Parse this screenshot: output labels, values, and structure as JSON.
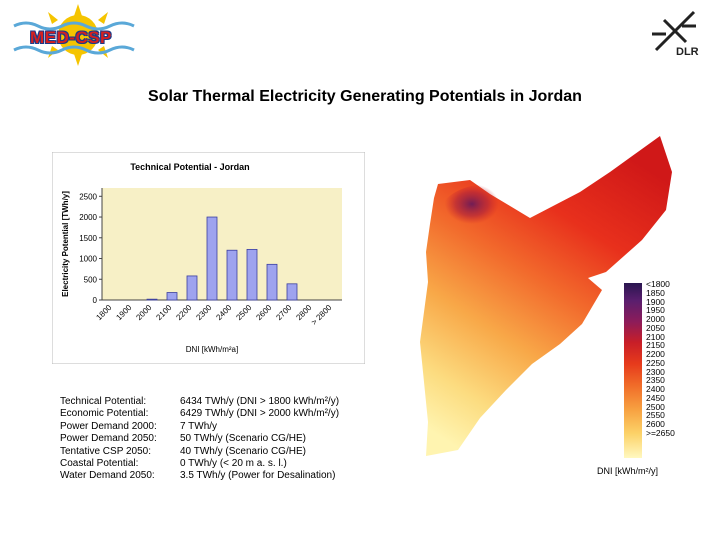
{
  "logos": {
    "med_csp": "MED-CSP",
    "dlr": "DLR"
  },
  "title": "Solar Thermal Electricity Generating Potentials in Jordan",
  "chart_data": {
    "type": "bar",
    "title": "Technical Potential - Jordan",
    "xlabel": "DNI [kWh/m²a]",
    "ylabel": "Electricity Potential [TWh/y]",
    "categories": [
      "1800",
      "1900",
      "2000",
      "2100",
      "2200",
      "2300",
      "2400",
      "2500",
      "2600",
      "2700",
      "2800",
      "> 2800"
    ],
    "values": [
      0,
      0,
      20,
      180,
      580,
      2000,
      1200,
      1220,
      860,
      390,
      0,
      0
    ],
    "yticks": [
      0,
      500,
      1000,
      1500,
      2000,
      2500
    ],
    "ylim": [
      0,
      2700
    ],
    "colors": {
      "bar": "#9ea3ef",
      "bar_edge": "#3b3f9e",
      "plot_bg": "#f7f0c6",
      "frame_bg": "#ffffff"
    }
  },
  "info": {
    "labels": [
      "Technical Potential:",
      "Economic Potential:",
      "Power Demand 2000:",
      "Power Demand 2050:",
      "Tentative CSP 2050:",
      "Coastal Potential:",
      "Water Demand 2050:"
    ],
    "values": [
      "6434 TWh/y (DNI > 1800 kWh/m²/y)",
      "6429 TWh/y (DNI > 2000 kWh/m²/y)",
      "7 TWh/y",
      "50 TWh/y (Scenario CG/HE)",
      "40 TWh/y (Scenario CG/HE)",
      "0 TWh/y (< 20 m a. s. l.)",
      "3.5 TWh/y (Power for Desalination)"
    ]
  },
  "legend": {
    "labels": [
      "<1800",
      "1850",
      "1900",
      "1950",
      "2000",
      "2050",
      "2100",
      "2150",
      "2200",
      "2250",
      "2300",
      "2350",
      "2400",
      "2450",
      "2500",
      "2550",
      "2600",
      ">=2650"
    ],
    "caption": "DNI [kWh/m²/y]"
  }
}
